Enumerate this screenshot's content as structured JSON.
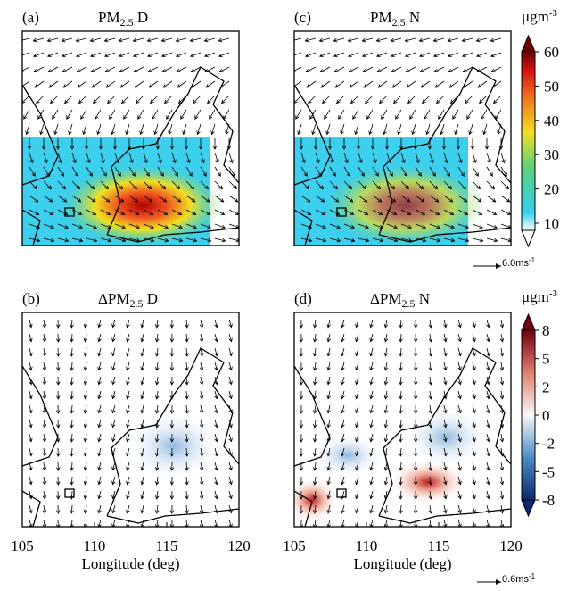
{
  "panels": [
    {
      "label": "(a)",
      "title": {
        "prefix": "PM",
        "sub": "2.5",
        "suffix": " D"
      }
    },
    {
      "label": "(c)",
      "title": {
        "prefix": "PM",
        "sub": "2.5",
        "suffix": " N"
      }
    },
    {
      "label": "(b)",
      "title": {
        "prefix": "ΔPM",
        "sub": "2.5",
        "suffix": " D"
      }
    },
    {
      "label": "(d)",
      "title": {
        "prefix": "ΔPM",
        "sub": "2.5",
        "suffix": " N"
      }
    }
  ],
  "colorbar_top": {
    "unit": {
      "base": "μgm",
      "sup": "-3"
    },
    "ticks": [
      10,
      20,
      30,
      40,
      50,
      60
    ]
  },
  "colorbar_bottom": {
    "unit": {
      "base": "μgm",
      "sup": "-3"
    },
    "ticks": [
      8,
      5,
      2,
      0,
      -2,
      -5,
      -8
    ]
  },
  "xaxis": {
    "label": "Longitude (deg)",
    "ticks": [
      105,
      110,
      115,
      120
    ]
  },
  "scale_top": {
    "base": "6.0ms",
    "sup": "-1"
  },
  "scale_bottom": {
    "base": "0.6ms",
    "sup": "-1"
  }
}
